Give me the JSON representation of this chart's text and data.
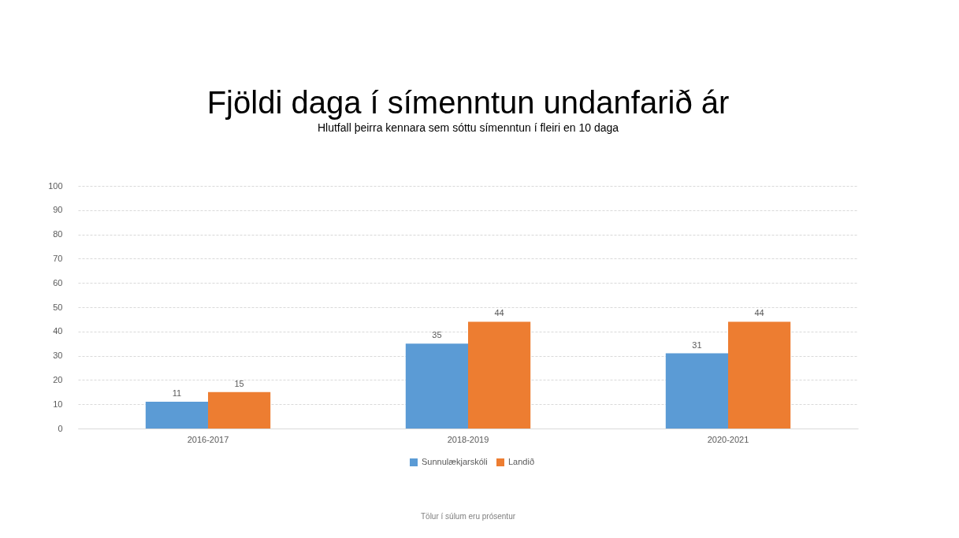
{
  "chart_data": {
    "type": "bar",
    "title": "Fjöldi daga í símenntun undanfarið ár",
    "subtitle": "Hlutfall þeirra kennara sem sóttu símenntun í fleiri en 10 daga",
    "categories": [
      "2016-2017",
      "2018-2019",
      "2020-2021"
    ],
    "series": [
      {
        "name": "Sunnulækjarskóli",
        "color": "#5b9bd5",
        "values": [
          11,
          35,
          31
        ]
      },
      {
        "name": "Landið",
        "color": "#ed7d31",
        "values": [
          15,
          44,
          44
        ]
      }
    ],
    "ylim": [
      0,
      100
    ],
    "yticks": [
      0,
      10,
      20,
      30,
      40,
      50,
      60,
      70,
      80,
      90,
      100
    ],
    "grid": "y",
    "legend": "bottom",
    "data_labels": true,
    "annotations": [
      "Tölur í súlum eru prósentur"
    ]
  }
}
